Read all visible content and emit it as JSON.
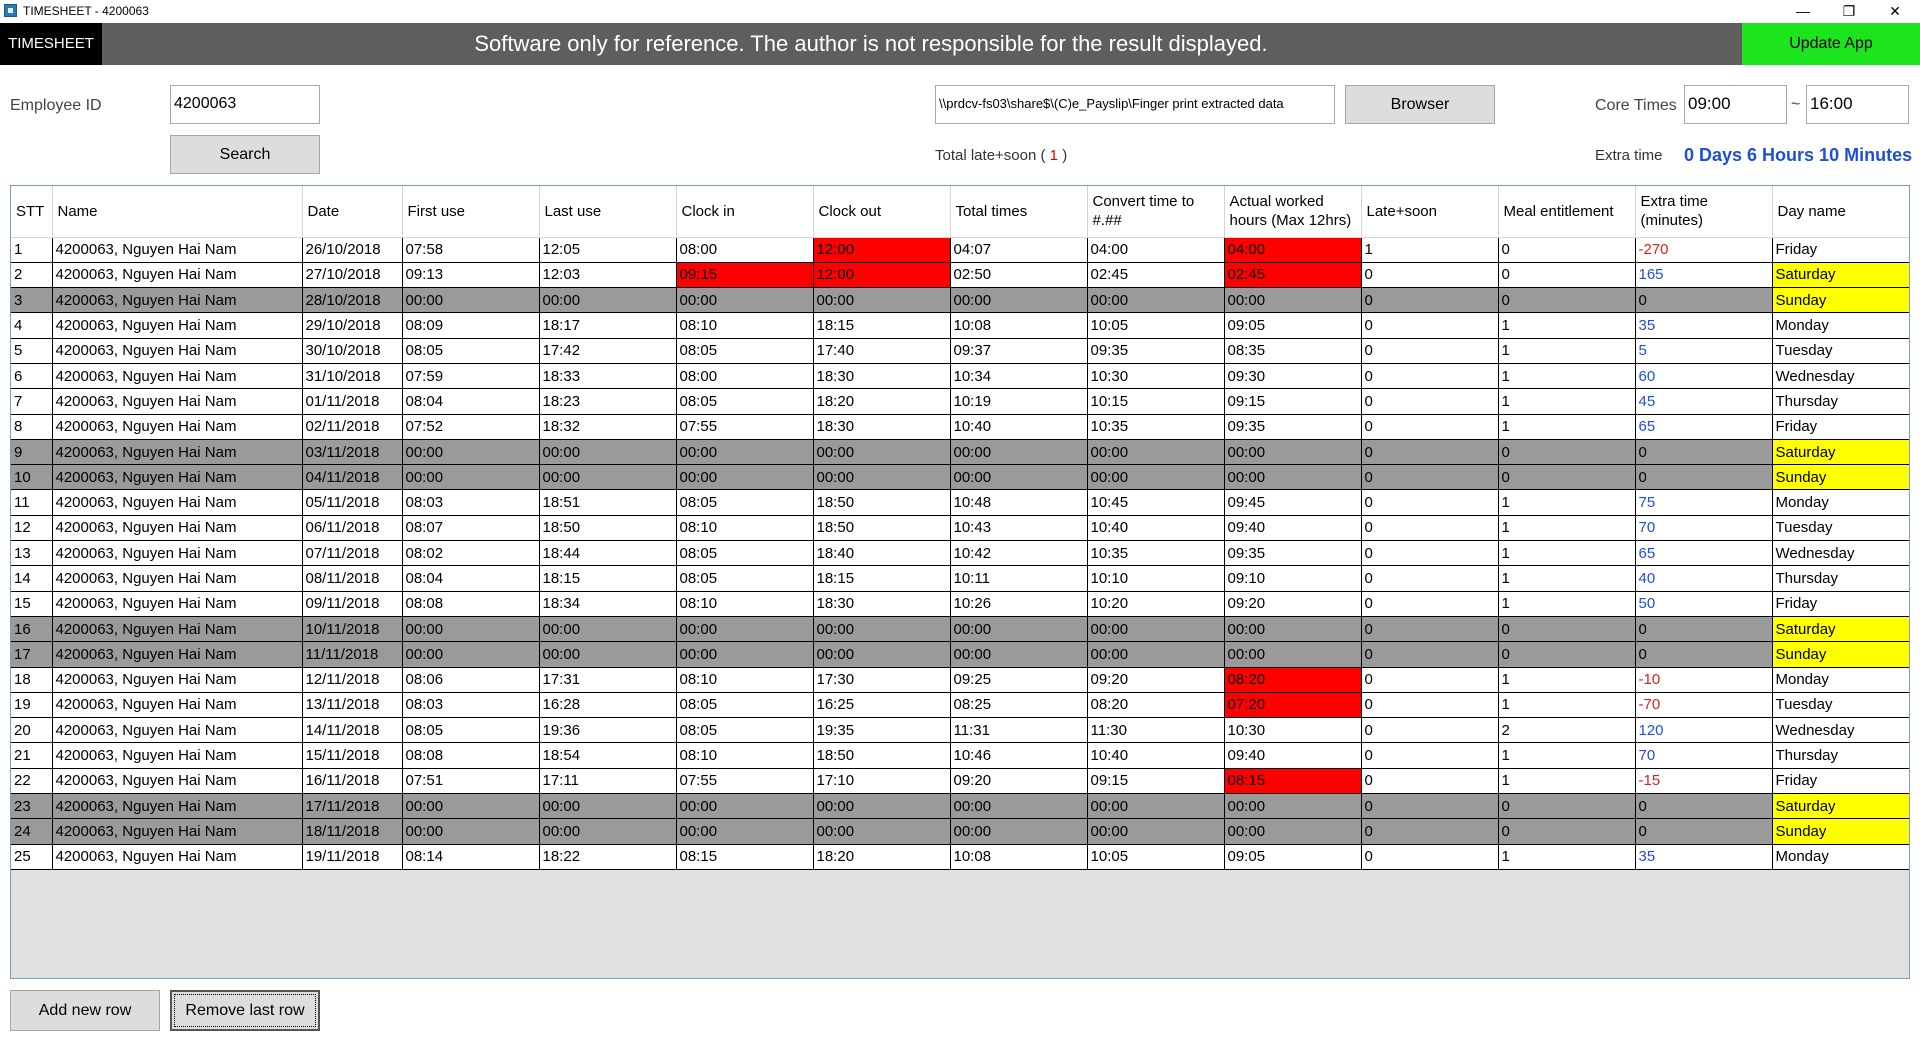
{
  "window": {
    "title": "TIMESHEET - 4200063",
    "minimize": "—",
    "restore": "❐",
    "close": "✕"
  },
  "banner": {
    "brand": "TIMESHEET",
    "disclaimer": "Software only for reference. The author is not responsible for the result displayed.",
    "update_label": "Update App",
    "update_color": "#1de51d"
  },
  "controls": {
    "employee_label": "Employee ID",
    "employee_value": "4200063",
    "search_label": "Search",
    "path_value": "\\\\prdcv-fs03\\share$\\(C)e_Payslip\\Finger print extracted data",
    "browser_label": "Browser",
    "total_label": "Total late+soon (",
    "total_value": "1",
    "total_close": ")",
    "core_label": "Core Times",
    "core_start": "09:00",
    "core_sep": "~",
    "core_end": "16:00",
    "extra_label": "Extra time",
    "extra_value": "0 Days 6 Hours 10 Minutes"
  },
  "table": {
    "columns": [
      "STT",
      "Name",
      "Date",
      "First use",
      "Last use",
      "Clock in",
      "Clock out",
      "Total times",
      "Convert time to #.##",
      "Actual worked hours (Max 12hrs)",
      "Late+soon",
      "Meal entitlement",
      "Extra time (minutes)",
      "Day name"
    ],
    "rows": [
      {
        "cells": [
          "1",
          "4200063, Nguyen Hai Nam",
          "26/10/2018",
          "07:58",
          "12:05",
          "08:00",
          "12:00",
          "04:07",
          "04:00",
          "04:00",
          "1",
          "0",
          "-270",
          "Friday"
        ],
        "weekend": false,
        "red": [
          6,
          9
        ],
        "yellow": false
      },
      {
        "cells": [
          "2",
          "4200063, Nguyen Hai Nam",
          "27/10/2018",
          "09:13",
          "12:03",
          "09:15",
          "12:00",
          "02:50",
          "02:45",
          "02:45",
          "0",
          "0",
          "165",
          "Saturday"
        ],
        "weekend": false,
        "red": [
          5,
          6,
          9
        ],
        "yellow": true
      },
      {
        "cells": [
          "3",
          "4200063, Nguyen Hai Nam",
          "28/10/2018",
          "00:00",
          "00:00",
          "00:00",
          "00:00",
          "00:00",
          "00:00",
          "00:00",
          "0",
          "0",
          "0",
          "Sunday"
        ],
        "weekend": true,
        "red": [],
        "yellow": true
      },
      {
        "cells": [
          "4",
          "4200063, Nguyen Hai Nam",
          "29/10/2018",
          "08:09",
          "18:17",
          "08:10",
          "18:15",
          "10:08",
          "10:05",
          "09:05",
          "0",
          "1",
          "35",
          "Monday"
        ],
        "weekend": false,
        "red": [],
        "yellow": false
      },
      {
        "cells": [
          "5",
          "4200063, Nguyen Hai Nam",
          "30/10/2018",
          "08:05",
          "17:42",
          "08:05",
          "17:40",
          "09:37",
          "09:35",
          "08:35",
          "0",
          "1",
          "5",
          "Tuesday"
        ],
        "weekend": false,
        "red": [],
        "yellow": false
      },
      {
        "cells": [
          "6",
          "4200063, Nguyen Hai Nam",
          "31/10/2018",
          "07:59",
          "18:33",
          "08:00",
          "18:30",
          "10:34",
          "10:30",
          "09:30",
          "0",
          "1",
          "60",
          "Wednesday"
        ],
        "weekend": false,
        "red": [],
        "yellow": false
      },
      {
        "cells": [
          "7",
          "4200063, Nguyen Hai Nam",
          "01/11/2018",
          "08:04",
          "18:23",
          "08:05",
          "18:20",
          "10:19",
          "10:15",
          "09:15",
          "0",
          "1",
          "45",
          "Thursday"
        ],
        "weekend": false,
        "red": [],
        "yellow": false
      },
      {
        "cells": [
          "8",
          "4200063, Nguyen Hai Nam",
          "02/11/2018",
          "07:52",
          "18:32",
          "07:55",
          "18:30",
          "10:40",
          "10:35",
          "09:35",
          "0",
          "1",
          "65",
          "Friday"
        ],
        "weekend": false,
        "red": [],
        "yellow": false
      },
      {
        "cells": [
          "9",
          "4200063, Nguyen Hai Nam",
          "03/11/2018",
          "00:00",
          "00:00",
          "00:00",
          "00:00",
          "00:00",
          "00:00",
          "00:00",
          "0",
          "0",
          "0",
          "Saturday"
        ],
        "weekend": true,
        "red": [],
        "yellow": true
      },
      {
        "cells": [
          "10",
          "4200063, Nguyen Hai Nam",
          "04/11/2018",
          "00:00",
          "00:00",
          "00:00",
          "00:00",
          "00:00",
          "00:00",
          "00:00",
          "0",
          "0",
          "0",
          "Sunday"
        ],
        "weekend": true,
        "red": [],
        "yellow": true
      },
      {
        "cells": [
          "11",
          "4200063, Nguyen Hai Nam",
          "05/11/2018",
          "08:03",
          "18:51",
          "08:05",
          "18:50",
          "10:48",
          "10:45",
          "09:45",
          "0",
          "1",
          "75",
          "Monday"
        ],
        "weekend": false,
        "red": [],
        "yellow": false
      },
      {
        "cells": [
          "12",
          "4200063, Nguyen Hai Nam",
          "06/11/2018",
          "08:07",
          "18:50",
          "08:10",
          "18:50",
          "10:43",
          "10:40",
          "09:40",
          "0",
          "1",
          "70",
          "Tuesday"
        ],
        "weekend": false,
        "red": [],
        "yellow": false
      },
      {
        "cells": [
          "13",
          "4200063, Nguyen Hai Nam",
          "07/11/2018",
          "08:02",
          "18:44",
          "08:05",
          "18:40",
          "10:42",
          "10:35",
          "09:35",
          "0",
          "1",
          "65",
          "Wednesday"
        ],
        "weekend": false,
        "red": [],
        "yellow": false
      },
      {
        "cells": [
          "14",
          "4200063, Nguyen Hai Nam",
          "08/11/2018",
          "08:04",
          "18:15",
          "08:05",
          "18:15",
          "10:11",
          "10:10",
          "09:10",
          "0",
          "1",
          "40",
          "Thursday"
        ],
        "weekend": false,
        "red": [],
        "yellow": false
      },
      {
        "cells": [
          "15",
          "4200063, Nguyen Hai Nam",
          "09/11/2018",
          "08:08",
          "18:34",
          "08:10",
          "18:30",
          "10:26",
          "10:20",
          "09:20",
          "0",
          "1",
          "50",
          "Friday"
        ],
        "weekend": false,
        "red": [],
        "yellow": false
      },
      {
        "cells": [
          "16",
          "4200063, Nguyen Hai Nam",
          "10/11/2018",
          "00:00",
          "00:00",
          "00:00",
          "00:00",
          "00:00",
          "00:00",
          "00:00",
          "0",
          "0",
          "0",
          "Saturday"
        ],
        "weekend": true,
        "red": [],
        "yellow": true
      },
      {
        "cells": [
          "17",
          "4200063, Nguyen Hai Nam",
          "11/11/2018",
          "00:00",
          "00:00",
          "00:00",
          "00:00",
          "00:00",
          "00:00",
          "00:00",
          "0",
          "0",
          "0",
          "Sunday"
        ],
        "weekend": true,
        "red": [],
        "yellow": true
      },
      {
        "cells": [
          "18",
          "4200063, Nguyen Hai Nam",
          "12/11/2018",
          "08:06",
          "17:31",
          "08:10",
          "17:30",
          "09:25",
          "09:20",
          "08:20",
          "0",
          "1",
          "-10",
          "Monday"
        ],
        "weekend": false,
        "red": [
          9
        ],
        "yellow": false
      },
      {
        "cells": [
          "19",
          "4200063, Nguyen Hai Nam",
          "13/11/2018",
          "08:03",
          "16:28",
          "08:05",
          "16:25",
          "08:25",
          "08:20",
          "07:20",
          "0",
          "1",
          "-70",
          "Tuesday"
        ],
        "weekend": false,
        "red": [
          9
        ],
        "yellow": false
      },
      {
        "cells": [
          "20",
          "4200063, Nguyen Hai Nam",
          "14/11/2018",
          "08:05",
          "19:36",
          "08:05",
          "19:35",
          "11:31",
          "11:30",
          "10:30",
          "0",
          "2",
          "120",
          "Wednesday"
        ],
        "weekend": false,
        "red": [],
        "yellow": false
      },
      {
        "cells": [
          "21",
          "4200063, Nguyen Hai Nam",
          "15/11/2018",
          "08:08",
          "18:54",
          "08:10",
          "18:50",
          "10:46",
          "10:40",
          "09:40",
          "0",
          "1",
          "70",
          "Thursday"
        ],
        "weekend": false,
        "red": [],
        "yellow": false
      },
      {
        "cells": [
          "22",
          "4200063, Nguyen Hai Nam",
          "16/11/2018",
          "07:51",
          "17:11",
          "07:55",
          "17:10",
          "09:20",
          "09:15",
          "08:15",
          "0",
          "1",
          "-15",
          "Friday"
        ],
        "weekend": false,
        "red": [
          9
        ],
        "yellow": false
      },
      {
        "cells": [
          "23",
          "4200063, Nguyen Hai Nam",
          "17/11/2018",
          "00:00",
          "00:00",
          "00:00",
          "00:00",
          "00:00",
          "00:00",
          "00:00",
          "0",
          "0",
          "0",
          "Saturday"
        ],
        "weekend": true,
        "red": [],
        "yellow": true
      },
      {
        "cells": [
          "24",
          "4200063, Nguyen Hai Nam",
          "18/11/2018",
          "00:00",
          "00:00",
          "00:00",
          "00:00",
          "00:00",
          "00:00",
          "00:00",
          "0",
          "0",
          "0",
          "Sunday"
        ],
        "weekend": true,
        "red": [],
        "yellow": true
      },
      {
        "cells": [
          "25",
          "4200063, Nguyen Hai Nam",
          "19/11/2018",
          "08:14",
          "18:22",
          "08:15",
          "18:20",
          "10:08",
          "10:05",
          "09:05",
          "0",
          "1",
          "35",
          "Monday"
        ],
        "weekend": false,
        "red": [],
        "yellow": false
      }
    ]
  },
  "footer": {
    "add_label": "Add new row",
    "remove_label": "Remove last row"
  },
  "colors": {
    "alert_red": "#ff0000",
    "weekend_yellow": "#ffff00",
    "weekend_row_gray": "#9a9a9a",
    "extra_blue": "#1f4fd6",
    "extra_negative": "#e02020"
  }
}
